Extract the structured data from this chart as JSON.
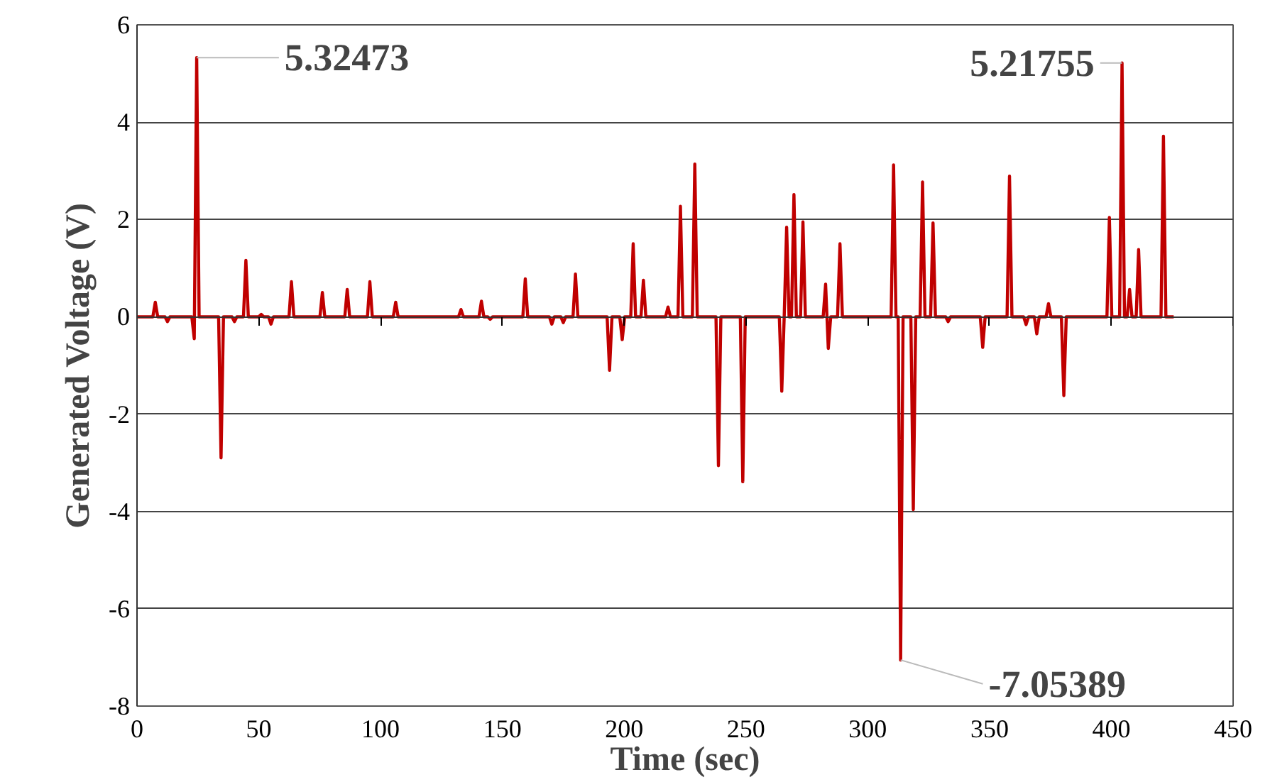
{
  "chart_data": {
    "type": "line",
    "xlabel": "Time (sec)",
    "ylabel": "Generated Voltage (V)",
    "xlim": [
      0,
      450
    ],
    "xticks": [
      0,
      50,
      100,
      150,
      200,
      250,
      300,
      350,
      400,
      450
    ],
    "ylim": [
      -8,
      6
    ],
    "yticks": [
      -8,
      -6,
      -4,
      -2,
      0,
      2,
      4,
      6
    ],
    "grid": "y",
    "marker": "none",
    "line_style": "solid",
    "series": [
      {
        "color": "#c00000",
        "x": [
          0,
          6.5,
          7.5,
          8.5,
          11.5,
          12.5,
          13.5,
          22.5,
          23.5,
          24.5,
          25.5,
          33.5,
          34.5,
          35.5,
          39,
          40,
          41,
          43.7,
          44.7,
          45.7,
          50,
          51,
          52,
          54,
          55,
          56,
          62.4,
          63.4,
          64.4,
          75.1,
          76.1,
          77.1,
          85.3,
          86.3,
          87.3,
          94.6,
          95.6,
          96.6,
          105.2,
          106.2,
          107.2,
          132,
          133,
          134,
          140.4,
          141.4,
          142.4,
          144,
          145,
          146,
          158.4,
          159.4,
          160.4,
          169.3,
          170.3,
          171.3,
          174,
          175,
          176,
          179,
          180,
          181,
          193,
          194,
          195,
          198.2,
          199.2,
          200.2,
          202.7,
          203.7,
          204.7,
          206.9,
          207.9,
          208.9,
          217,
          218,
          219,
          222.1,
          223.1,
          224.1,
          228,
          229,
          230,
          237.7,
          238.7,
          239.7,
          247.7,
          248.7,
          249.7,
          263.7,
          264.7,
          265.7,
          266.7,
          267.7,
          268.7,
          269.7,
          270.7,
          272.4,
          273.4,
          274.4,
          281.7,
          282.7,
          283.8,
          284.8,
          287.6,
          288.6,
          289.6,
          309.6,
          310.6,
          311.6,
          312.5,
          313.5,
          314.5,
          317.7,
          318.7,
          319.7,
          321.5,
          322.5,
          323.5,
          325.8,
          326.8,
          327.8,
          332,
          333,
          334,
          346.2,
          347.2,
          348.2,
          357.2,
          358.2,
          359.2,
          364,
          365,
          366,
          368.4,
          369.4,
          370.4,
          373.2,
          374.2,
          375.2,
          379.5,
          380.5,
          381.5,
          398.2,
          399.2,
          400.2,
          403.4,
          404.4,
          405.4,
          406.5,
          407.5,
          408.5,
          410.2,
          411.2,
          412.2,
          420.4,
          421.4,
          422.4,
          425.6
        ],
        "values": [
          0,
          0,
          0.3,
          0,
          0,
          -0.1,
          0,
          0,
          -0.45,
          5.32473,
          0,
          0,
          -2.9,
          0,
          0,
          -0.1,
          0,
          0,
          1.16,
          0,
          0,
          0.05,
          0,
          0,
          -0.15,
          0,
          0,
          0.72,
          0,
          0,
          0.5,
          0,
          0,
          0.56,
          0,
          0,
          0.72,
          0,
          0,
          0.3,
          0,
          0,
          0.15,
          0,
          0,
          0.32,
          0,
          0,
          -0.05,
          0,
          0,
          0.78,
          0,
          0,
          -0.15,
          0,
          0,
          -0.12,
          0,
          0,
          0.88,
          0,
          0,
          -1.1,
          0,
          0,
          -0.47,
          0,
          0,
          1.5,
          0,
          0,
          0.75,
          0,
          0,
          0.2,
          0,
          0,
          2.27,
          0,
          0,
          3.14,
          0,
          0,
          -3.06,
          0,
          0,
          -3.39,
          0,
          0,
          -1.53,
          0,
          1.84,
          0,
          0,
          2.51,
          0,
          0,
          1.95,
          0,
          0,
          0.67,
          -0.65,
          0,
          0,
          1.5,
          0,
          0,
          3.12,
          0,
          0,
          -7.05389,
          0,
          0,
          -3.96,
          0,
          0,
          2.77,
          0,
          0,
          1.93,
          0,
          0,
          -0.1,
          0,
          0,
          -0.63,
          0,
          0,
          2.89,
          0,
          0,
          -0.16,
          0,
          0,
          -0.35,
          0,
          0,
          0.27,
          0,
          0,
          -1.62,
          0,
          0,
          2.04,
          0,
          0,
          5.21755,
          0,
          0,
          0.56,
          0,
          0,
          1.38,
          0,
          0,
          3.71,
          0,
          0
        ]
      }
    ],
    "annotations": [
      {
        "text": "5.32473",
        "x": 24.5,
        "y": 5.32473
      },
      {
        "text": "5.21755",
        "x": 404.4,
        "y": 5.21755
      },
      {
        "text": "-7.05389",
        "x": 313.5,
        "y": -7.05389
      }
    ]
  }
}
